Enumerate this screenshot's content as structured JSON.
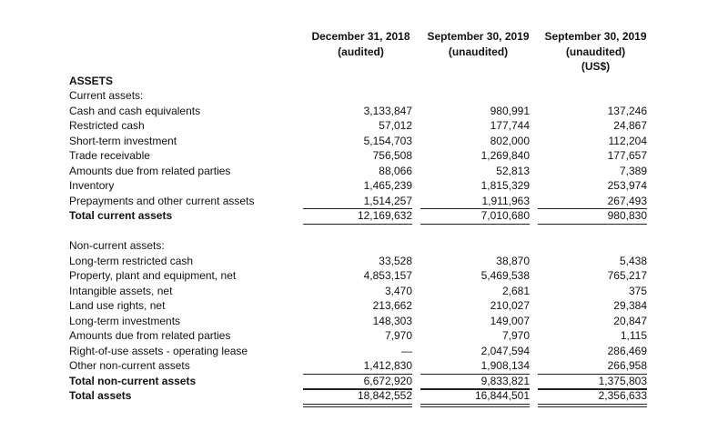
{
  "header": {
    "columns": [
      {
        "lines": [
          "December 31, 2018",
          "(audited)"
        ]
      },
      {
        "lines": [
          "September 30, 2019",
          "(unaudited)"
        ]
      },
      {
        "lines": [
          "September 30, 2019",
          "(unaudited)",
          "(US$)"
        ]
      }
    ]
  },
  "title": "ASSETS",
  "sections": [
    {
      "rows": [
        {
          "label": "Current assets:"
        },
        {
          "label": "Cash and cash equivalents",
          "values": [
            "3,133,847",
            "980,991",
            "137,246"
          ]
        },
        {
          "label": "Restricted cash",
          "values": [
            "57,012",
            "177,744",
            "24,867"
          ]
        },
        {
          "label": "Short-term investment",
          "values": [
            "5,154,703",
            "802,000",
            "112,204"
          ]
        },
        {
          "label": "Trade receivable",
          "values": [
            "756,508",
            "1,269,840",
            "177,657"
          ]
        },
        {
          "label": "Amounts due from related parties",
          "values": [
            "88,066",
            "52,813",
            "7,389"
          ]
        },
        {
          "label": "Inventory",
          "values": [
            "1,465,239",
            "1,815,329",
            "253,974"
          ]
        },
        {
          "label": "Prepayments and other current assets",
          "values": [
            "1,514,257",
            "1,911,963",
            "267,493"
          ]
        },
        {
          "label": "Total current assets",
          "values": [
            "12,169,632",
            "7,010,680",
            "980,830"
          ],
          "total": true
        }
      ]
    },
    {
      "rows": [
        {
          "label": "Non-current assets:"
        },
        {
          "label": "Long-term restricted cash",
          "values": [
            "33,528",
            "38,870",
            "5,438"
          ]
        },
        {
          "label": "Property, plant and equipment, net",
          "values": [
            "4,853,157",
            "5,469,538",
            "765,217"
          ]
        },
        {
          "label": "Intangible assets, net",
          "values": [
            "3,470",
            "2,681",
            "375"
          ]
        },
        {
          "label": "Land use rights, net",
          "values": [
            "213,662",
            "210,027",
            "29,384"
          ]
        },
        {
          "label": "Long-term investments",
          "values": [
            "148,303",
            "149,007",
            "20,847"
          ]
        },
        {
          "label": "Amounts due from related parties",
          "values": [
            "7,970",
            "7,970",
            "1,115"
          ]
        },
        {
          "label": "Right-of-use assets - operating lease",
          "values": [
            "—",
            "2,047,594",
            "286,469"
          ]
        },
        {
          "label": "Other non-current assets",
          "values": [
            "1,412,830",
            "1,908,134",
            "266,958"
          ]
        },
        {
          "label": "Total non-current assets",
          "values": [
            "6,672,920",
            "9,833,821",
            "1,375,803"
          ],
          "total": true
        },
        {
          "label": "Total assets",
          "values": [
            "18,842,552",
            "16,844,501",
            "2,356,633"
          ],
          "total": true
        }
      ]
    }
  ]
}
